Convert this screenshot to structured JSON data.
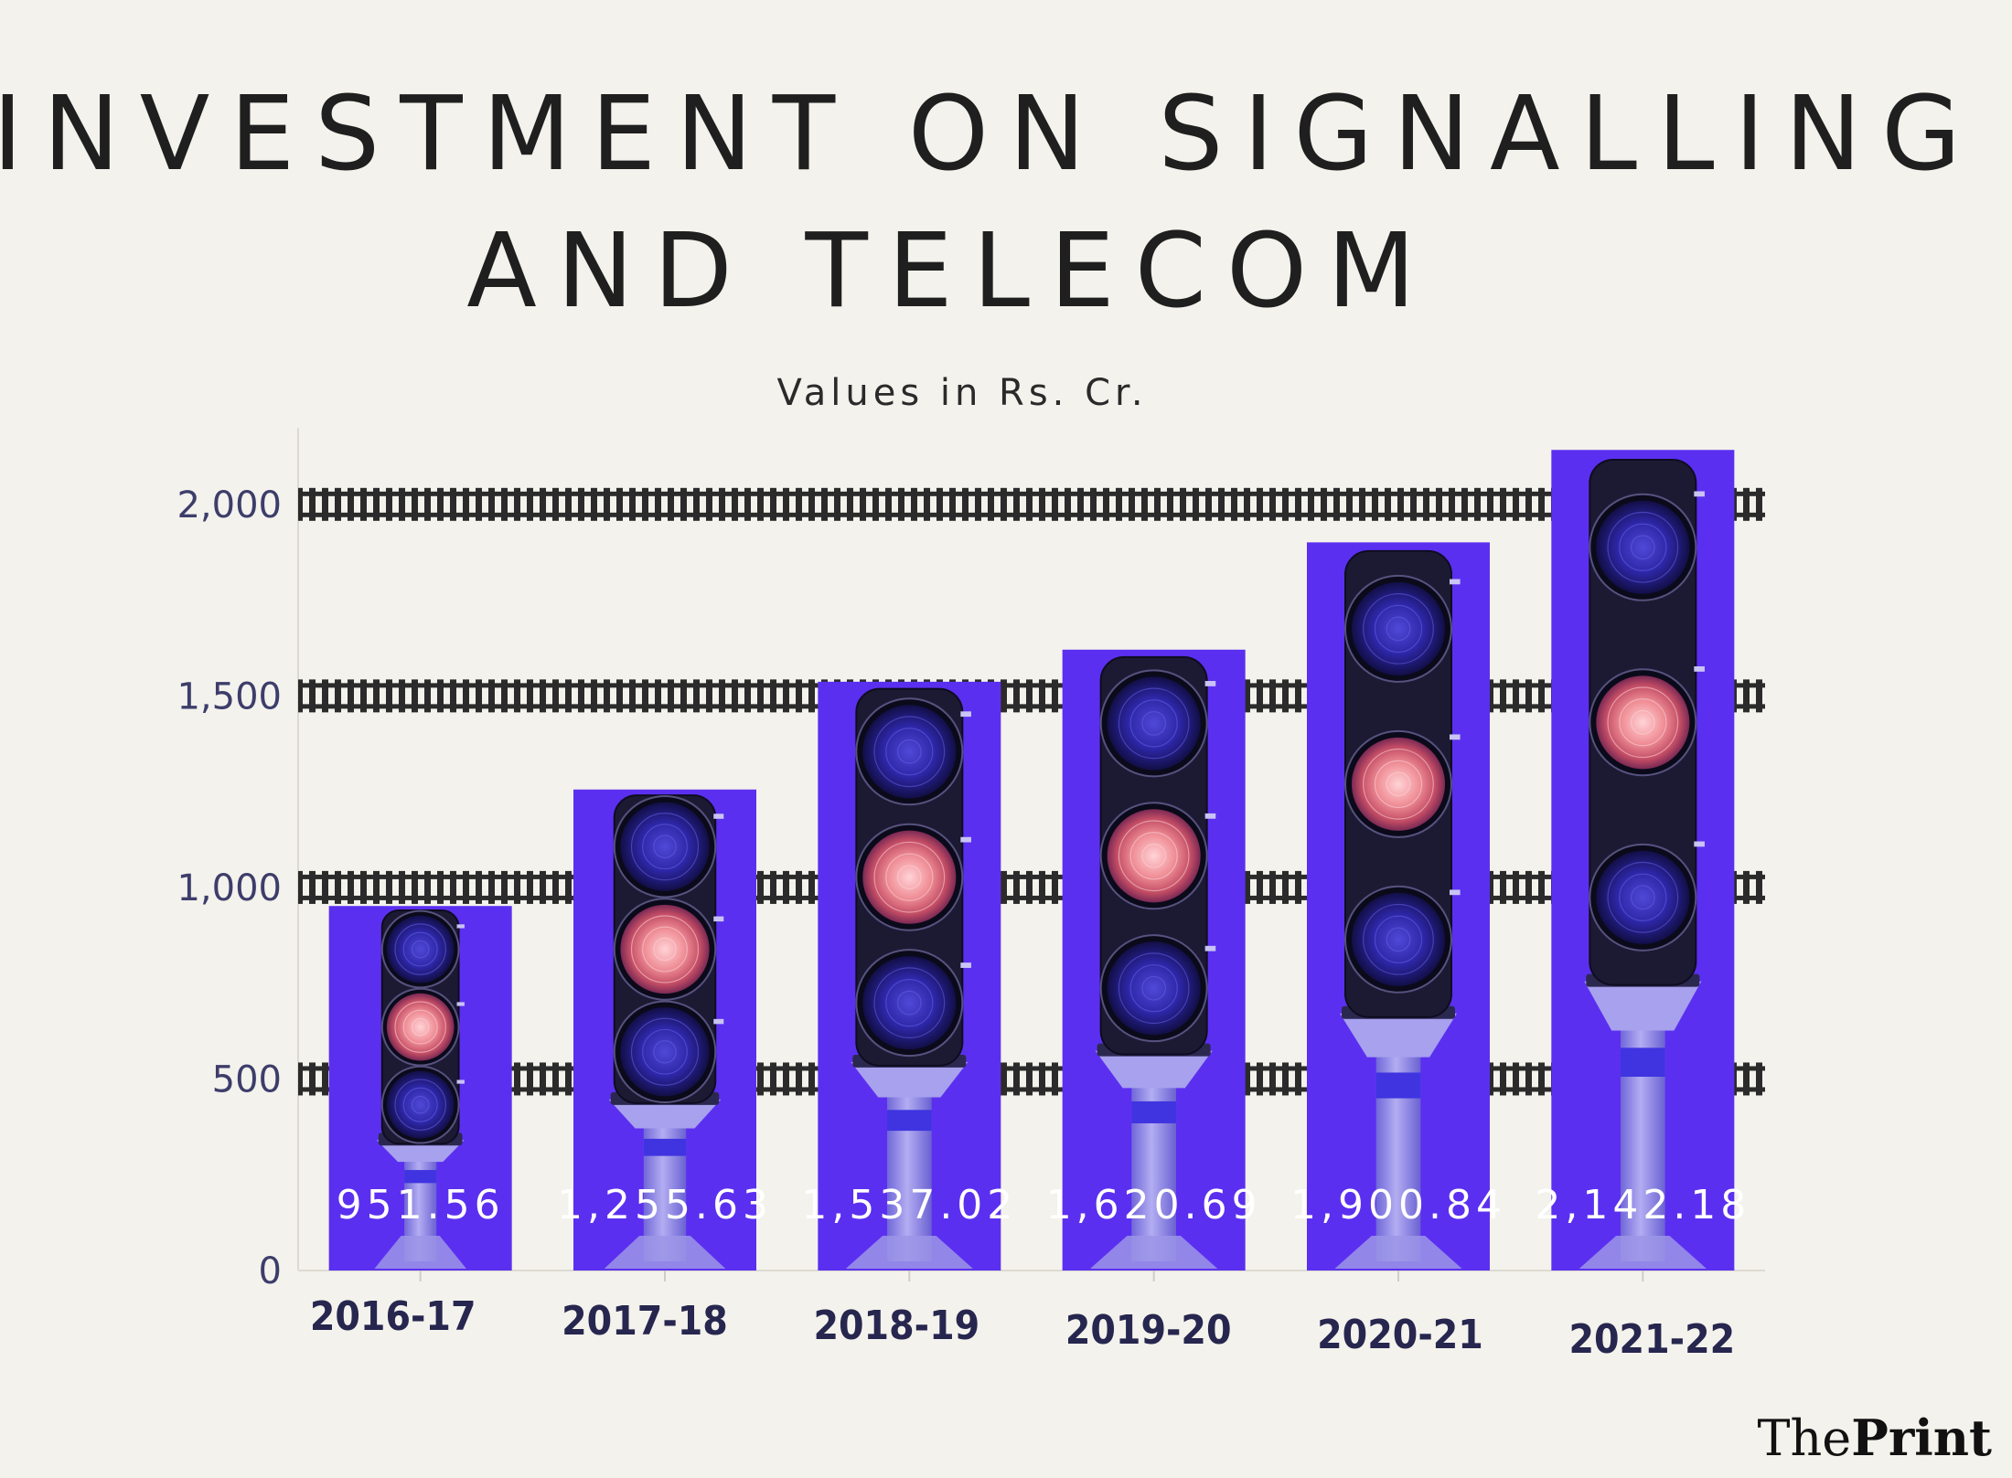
{
  "chart_data": {
    "type": "bar",
    "title_lines": [
      "INVESTMENT ON SIGNALLING",
      "AND TELECOM"
    ],
    "subtitle": "Values in Rs. Cr.",
    "categories": [
      "2016-17",
      "2017-18",
      "2018-19",
      "2019-20",
      "2020-21",
      "2021-22"
    ],
    "values": [
      951.56,
      1255.63,
      1537.02,
      1620.69,
      1900.84,
      2142.18
    ],
    "value_labels": [
      "951.56",
      "1,255.63",
      "1,537.02",
      "1,620.69",
      "1,900.84",
      "2,142.18"
    ],
    "yticks": [
      0,
      500,
      1000,
      1500,
      2000
    ],
    "ytick_labels": [
      "0",
      "500",
      "1,000",
      "1,500",
      "2,000"
    ],
    "ylim": [
      0,
      2200
    ],
    "xlabel": "",
    "ylabel": "",
    "gridlines": "railway-track",
    "colors": {
      "bar": "#5b2ff0",
      "background": "#f3f2ec",
      "track": "#2b2b2b",
      "signal_housing": "#1c1a33",
      "signal_lamp_off": "#3a2fc9",
      "signal_lamp_on": "#e07a86",
      "pole": "#8f86e6"
    }
  },
  "brand": {
    "the": "The",
    "print": "Print"
  }
}
